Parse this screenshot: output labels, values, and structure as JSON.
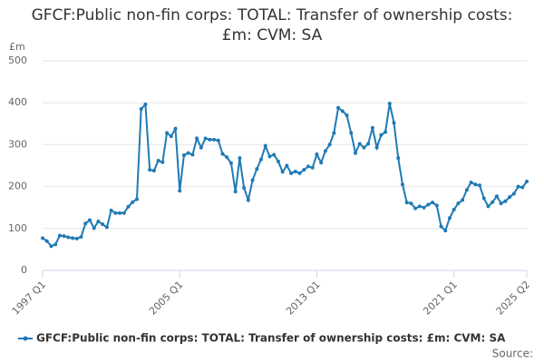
{
  "chart_data": {
    "type": "line",
    "title": "GFCF:Public non-fin corps: TOTAL: Transfer of ownership costs: £m: CVM: SA",
    "y_label": "£m",
    "source": "Source:",
    "categories": [
      "1997 Q1",
      null,
      null,
      null,
      null,
      null,
      null,
      null,
      null,
      null,
      null,
      null,
      null,
      null,
      null,
      null,
      null,
      null,
      null,
      null,
      null,
      null,
      null,
      null,
      null,
      null,
      null,
      null,
      null,
      null,
      null,
      null,
      "2005 Q1",
      null,
      null,
      null,
      null,
      null,
      null,
      null,
      null,
      null,
      null,
      null,
      null,
      null,
      null,
      null,
      null,
      null,
      null,
      null,
      null,
      null,
      null,
      null,
      null,
      null,
      null,
      null,
      null,
      null,
      null,
      null,
      "2013 Q1",
      null,
      null,
      null,
      null,
      null,
      null,
      null,
      null,
      null,
      null,
      null,
      null,
      null,
      null,
      null,
      null,
      null,
      null,
      null,
      null,
      null,
      null,
      null,
      null,
      null,
      null,
      null,
      null,
      null,
      null,
      null,
      "2021 Q1",
      null,
      null,
      null,
      null,
      null,
      null,
      null,
      null,
      null,
      null,
      null,
      null,
      null,
      null,
      null,
      null,
      "2025 Q2"
    ],
    "series": [
      {
        "name": "GFCF:Public non-fin corps: TOTAL: Transfer of ownership costs: £m: CVM: SA",
        "color": "#1f7ab5",
        "values": [
          77,
          70,
          58,
          62,
          83,
          82,
          79,
          77,
          76,
          80,
          112,
          120,
          101,
          117,
          110,
          103,
          143,
          137,
          137,
          137,
          152,
          163,
          170,
          385,
          396,
          240,
          238,
          262,
          258,
          328,
          320,
          338,
          190,
          275,
          280,
          276,
          315,
          293,
          315,
          312,
          312,
          310,
          278,
          270,
          256,
          188,
          268,
          197,
          168,
          215,
          242,
          265,
          297,
          272,
          276,
          260,
          235,
          250,
          232,
          236,
          232,
          240,
          248,
          245,
          277,
          257,
          285,
          300,
          328,
          388,
          380,
          370,
          328,
          280,
          302,
          293,
          302,
          340,
          293,
          323,
          330,
          398,
          352,
          268,
          205,
          162,
          160,
          148,
          153,
          150,
          157,
          162,
          155,
          105,
          95,
          125,
          145,
          160,
          168,
          192,
          210,
          205,
          203,
          172,
          153,
          163,
          177,
          160,
          165,
          175,
          183,
          200,
          198,
          212
        ]
      }
    ],
    "ylim": [
      0,
      500
    ],
    "yticks": [
      0,
      100,
      200,
      300,
      400,
      500
    ],
    "grid": true,
    "legend": "bottom"
  }
}
